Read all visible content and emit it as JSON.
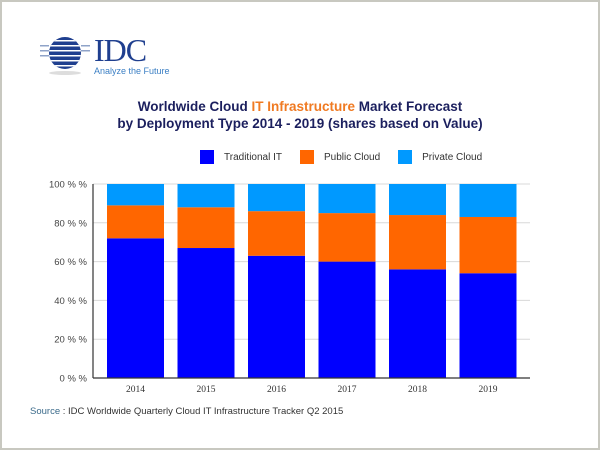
{
  "logo": {
    "text": "IDC",
    "tagline": "Analyze the Future"
  },
  "chart_data": {
    "type": "bar",
    "stacked": true,
    "title_line1_pre": "Worldwide Cloud ",
    "title_line1_highlight": "IT Infrastructure",
    "title_line1_post": " Market Forecast",
    "title_line2": "by Deployment Type  2014 - 2019 (shares based on Value)",
    "categories": [
      "2014",
      "2015",
      "2016",
      "2017",
      "2018",
      "2019"
    ],
    "series": [
      {
        "name": "Traditional IT",
        "color": "#0000ff",
        "values": [
          72,
          67,
          63,
          60,
          56,
          54
        ]
      },
      {
        "name": "Public Cloud",
        "color": "#ff6600",
        "values": [
          17,
          21,
          23,
          25,
          28,
          29
        ]
      },
      {
        "name": "Private Cloud",
        "color": "#0099ff",
        "values": [
          11,
          12,
          14,
          15,
          16,
          17
        ]
      }
    ],
    "yticks": [
      "0 % %",
      "20 % %",
      "40 % %",
      "60 % %",
      "80 % %",
      "100 % %"
    ],
    "ylim": [
      0,
      100
    ],
    "grid": true,
    "legend_position": "top"
  },
  "title_highlight_color": "#f07a22",
  "source": {
    "label": "Source",
    "text": " : IDC Worldwide Quarterly Cloud IT Infrastructure Tracker Q2 2015"
  }
}
